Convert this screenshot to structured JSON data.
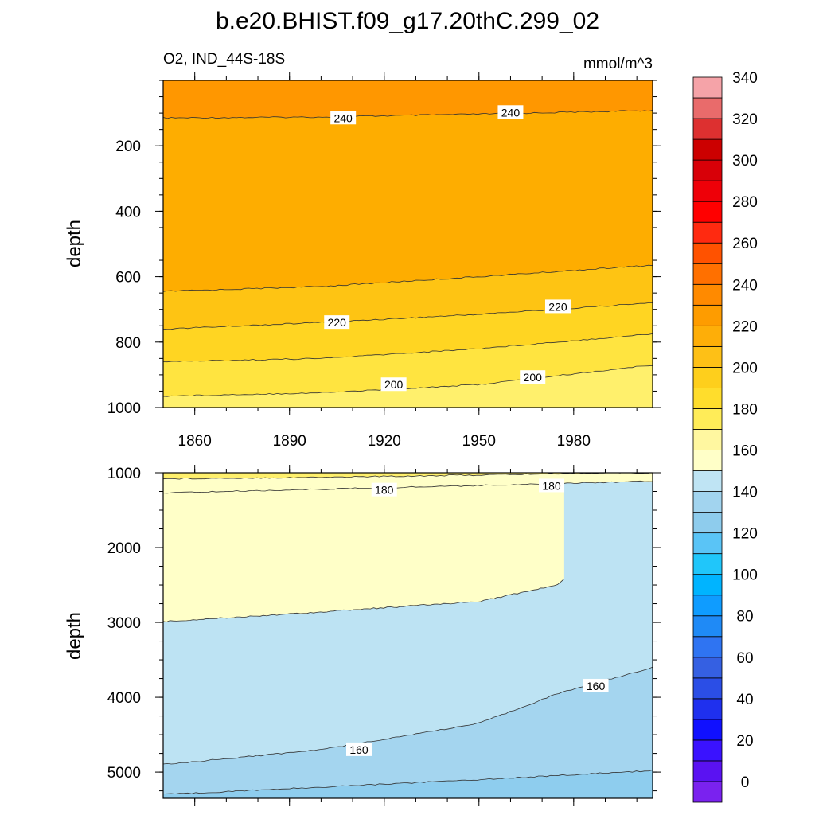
{
  "chart_data": {
    "type": "heatmap",
    "title": "b.e20.BHIST.f09_g17.20thC.299_02",
    "left_subtitle": "O2, IND_44S-18S",
    "right_subtitle": "mmol/m^3",
    "ylabel": "depth",
    "x_ticks": [
      "1860",
      "1890",
      "1920",
      "1950",
      "1980"
    ],
    "colorbar": {
      "levels": [
        0,
        10,
        20,
        30,
        40,
        50,
        60,
        70,
        80,
        90,
        100,
        110,
        120,
        130,
        140,
        150,
        160,
        170,
        180,
        190,
        200,
        210,
        220,
        230,
        240,
        250,
        260,
        270,
        280,
        290,
        300,
        310,
        320,
        330,
        340,
        350
      ],
      "tick_labels": [
        "0",
        "20",
        "40",
        "60",
        "80",
        "100",
        "120",
        "140",
        "160",
        "180",
        "200",
        "220",
        "240",
        "260",
        "280",
        "300",
        "320",
        "340"
      ],
      "colors": [
        "#7a22ef",
        "#5a12f2",
        "#3a12ff",
        "#1010ff",
        "#1f30ee",
        "#2b4ee6",
        "#3560e2",
        "#2f74f2",
        "#1f8af6",
        "#0f9cff",
        "#00b4ff",
        "#20c6fa",
        "#5ac4f6",
        "#8ecced",
        "#a2d4ef",
        "#bfe4f4",
        "#ffffc8",
        "#fff7a0",
        "#ffec58",
        "#ffdd2c",
        "#fecf1c",
        "#fec016",
        "#feae08",
        "#fe9c00",
        "#ff8a00",
        "#ff7000",
        "#ff5200",
        "#ff2a10",
        "#ff0000",
        "#ee0008",
        "#d80008",
        "#cc0000",
        "#dd3030",
        "#e96b6b",
        "#f5a3a8"
      ]
    },
    "panels": [
      {
        "name": "upper",
        "ylim": [
          0,
          1000
        ],
        "y_ticks": [
          200,
          400,
          600,
          800,
          1000
        ],
        "xlim": [
          1850,
          2005
        ],
        "bands": [
          {
            "color": "#ff9700",
            "upper": "top",
            "lower": [
              [
                1850,
                115
              ],
              [
                1900,
                112
              ],
              [
                1950,
                103
              ],
              [
                2005,
                92
              ]
            ]
          },
          {
            "color": "#fead00",
            "upper": "prev",
            "lower": [
              [
                1850,
                645
              ],
              [
                1900,
                630
              ],
              [
                1950,
                600
              ],
              [
                2005,
                565
              ]
            ]
          },
          {
            "color": "#fec413",
            "upper": "prev",
            "lower": [
              [
                1850,
                760
              ],
              [
                1900,
                740
              ],
              [
                1950,
                715
              ],
              [
                2005,
                680
              ]
            ]
          },
          {
            "color": "#ffd522",
            "upper": "prev",
            "lower": [
              [
                1850,
                860
              ],
              [
                1900,
                850
              ],
              [
                1950,
                820
              ],
              [
                2005,
                775
              ]
            ]
          },
          {
            "color": "#ffe440",
            "upper": "prev",
            "lower": [
              [
                1850,
                965
              ],
              [
                1900,
                955
              ],
              [
                1950,
                930
              ],
              [
                2005,
                870
              ]
            ]
          },
          {
            "color": "#fff06c",
            "upper": "prev",
            "lower": "bottom"
          }
        ],
        "contour_labels": [
          {
            "text": "240",
            "x": 1907,
            "y": 115
          },
          {
            "text": "240",
            "x": 1960,
            "y": 98
          },
          {
            "text": "220",
            "x": 1905,
            "y": 740
          },
          {
            "text": "220",
            "x": 1975,
            "y": 692
          },
          {
            "text": "200",
            "x": 1923,
            "y": 930
          },
          {
            "text": "200",
            "x": 1967,
            "y": 908
          }
        ]
      },
      {
        "name": "lower",
        "ylim": [
          1000,
          5350
        ],
        "y_ticks": [
          1000,
          2000,
          3000,
          4000,
          5000
        ],
        "xlim": [
          1850,
          2005
        ],
        "bands": [
          {
            "color": "#fff06c",
            "upper": "top",
            "lower": [
              [
                1850,
                1080
              ],
              [
                1900,
                1060
              ],
              [
                1950,
                1030
              ],
              [
                1992,
                1000
              ],
              [
                2005,
                1000
              ]
            ]
          },
          {
            "color": "#ffffc8",
            "upper": "prev",
            "lower": [
              [
                1850,
                1270
              ],
              [
                1900,
                1220
              ],
              [
                1950,
                1170
              ],
              [
                2005,
                1110
              ]
            ]
          },
          {
            "color": "#ffffc8",
            "upper": "prev",
            "lower": [
              [
                1850,
                2990
              ],
              [
                1900,
                2860
              ],
              [
                1950,
                2720
              ],
              [
                1975,
                2500
              ],
              [
                1977,
                2420
              ]
            ]
          },
          {
            "color": "#bde3f3",
            "upper": "prev",
            "lower": [
              [
                1850,
                4900
              ],
              [
                1900,
                4700
              ],
              [
                1950,
                4350
              ],
              [
                1975,
                3950
              ],
              [
                2005,
                3600
              ]
            ]
          },
          {
            "color": "#a4d5ef",
            "upper": "prev",
            "lower": [
              [
                1850,
                5300
              ],
              [
                1900,
                5200
              ],
              [
                1950,
                5100
              ],
              [
                2005,
                4980
              ]
            ]
          },
          {
            "color": "#8ecdee",
            "upper": "prev",
            "lower": "bottom"
          }
        ],
        "contour_labels": [
          {
            "text": "180",
            "x": 1920,
            "y": 1230
          },
          {
            "text": "180",
            "x": 1973,
            "y": 1175
          },
          {
            "text": "160",
            "x": 1987,
            "y": 3850
          },
          {
            "text": "160",
            "x": 1912,
            "y": 4700
          }
        ]
      }
    ]
  }
}
